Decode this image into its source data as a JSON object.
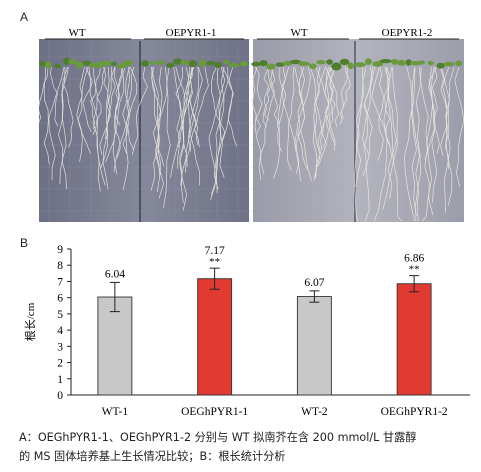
{
  "panel_a": {
    "letter": "A",
    "groups": [
      {
        "labels": [
          "WT",
          "OEPYR1-1"
        ]
      },
      {
        "labels": [
          "WT",
          "OEPYR1-2"
        ]
      }
    ]
  },
  "panel_b": {
    "letter": "B"
  },
  "chart_data": {
    "type": "bar",
    "categories": [
      "WT-1",
      "OEGhPYR1-1",
      "WT-2",
      "OEGhPYR1-2"
    ],
    "values": [
      6.04,
      7.17,
      6.07,
      6.86
    ],
    "errors": [
      0.9,
      0.65,
      0.35,
      0.5
    ],
    "value_labels": [
      "6.04",
      "7.17",
      "6.07",
      "6.86"
    ],
    "significance": [
      "",
      "**",
      "",
      "**"
    ],
    "bar_colors": [
      "#c8c8c8",
      "#e03a33",
      "#c8c8c8",
      "#e03a33"
    ],
    "ylabel": "根长/cm",
    "xlabel": "",
    "ylim": [
      0,
      9
    ],
    "yticks": [
      0,
      1,
      2,
      3,
      4,
      5,
      6,
      7,
      8,
      9
    ],
    "grid": false
  },
  "caption": {
    "line1": "A：OEGhPYR1-1、OEGhPYR1-2 分别与 WT 拟南芥在含 200 mmol/L 甘露醇",
    "line2": "的 MS 固体培养基上生长情况比较；B：根长统计分析"
  }
}
